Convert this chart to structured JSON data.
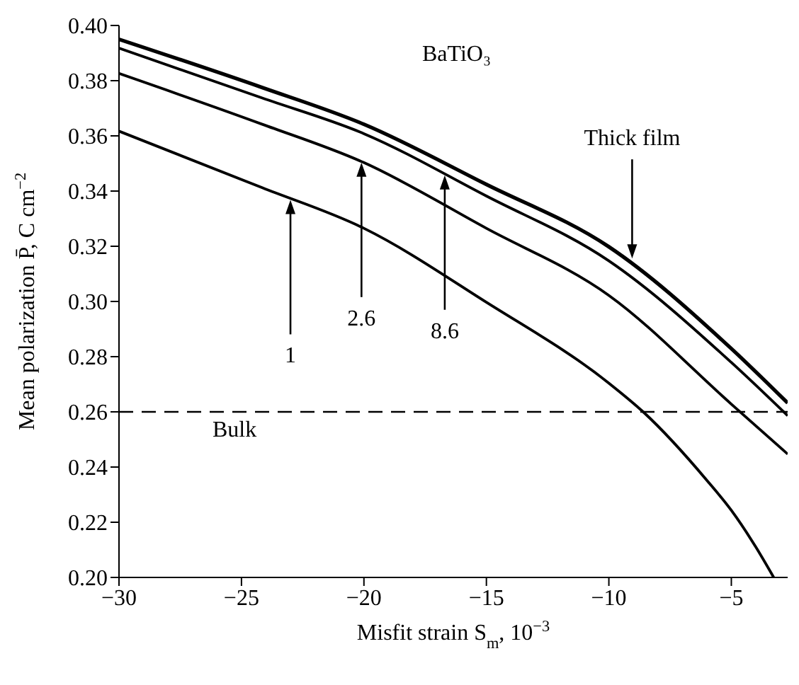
{
  "chart_data": {
    "type": "line",
    "title": "BaTiO₃",
    "xlabel": "Misfit strain S$_{m}$, 10$^{−3}$",
    "ylabel": "Mean polarization P̄, C cm$^{−2}$",
    "xlim": [
      -30,
      -2.7
    ],
    "xticks": [
      -30,
      -25,
      -20,
      -15,
      -10,
      -5
    ],
    "ylim": [
      0.2,
      0.4
    ],
    "yticks": [
      {
        "value": 0.2,
        "label": "0.20"
      },
      0.22,
      0.24,
      0.26,
      0.28,
      {
        "value": 0.3,
        "label": "0.30"
      },
      0.32,
      0.34,
      0.36,
      0.38,
      {
        "value": 0.4,
        "label": "0.40"
      }
    ],
    "marker": "none",
    "line_style": "solid",
    "series": [
      {
        "color": "#000000",
        "x": [
          -30,
          -24.15,
          -20,
          -15,
          -10,
          -5,
          -2.7
        ],
        "values": [
          0.395,
          0.3775,
          0.3642,
          0.3424,
          0.3198,
          0.2829,
          0.2632
        ]
      },
      {
        "color": "#000000",
        "x": [
          -30,
          -24.15,
          -20,
          -15,
          -10,
          -5,
          -2.7
        ],
        "values": [
          0.3918,
          0.3737,
          0.3608,
          0.3382,
          0.3147,
          0.2779,
          0.2586
        ]
      },
      {
        "color": "#000000",
        "x": [
          -30,
          -24.15,
          -20,
          -15,
          -10,
          -5,
          -2.7
        ],
        "values": [
          0.3826,
          0.3642,
          0.3503,
          0.3265,
          0.3022,
          0.2628,
          0.2447
        ]
      },
      {
        "color": "#000000",
        "x": [
          -30,
          -24.15,
          -20,
          -15,
          -10,
          -8.6,
          -6,
          -5,
          -4,
          -3.27
        ],
        "values": [
          0.3617,
          0.3412,
          0.3265,
          0.2997,
          0.2704,
          0.26,
          0.2352,
          0.2243,
          0.211,
          0.2
        ]
      }
    ],
    "ref_lines": [
      {
        "axis": "y",
        "value": 0.26,
        "label": "Bulk",
        "color": "#000000",
        "line_style": "dashed"
      }
    ],
    "annotations": [
      {
        "text": "1",
        "x": -23.0,
        "y": 0.3368
      },
      {
        "text": "2.6",
        "x": -20.1,
        "y": 0.3503
      },
      {
        "text": "8.6",
        "x": -16.7,
        "y": 0.3457
      },
      {
        "text": "Thick film",
        "x": -9.05,
        "y": 0.3156
      }
    ]
  }
}
